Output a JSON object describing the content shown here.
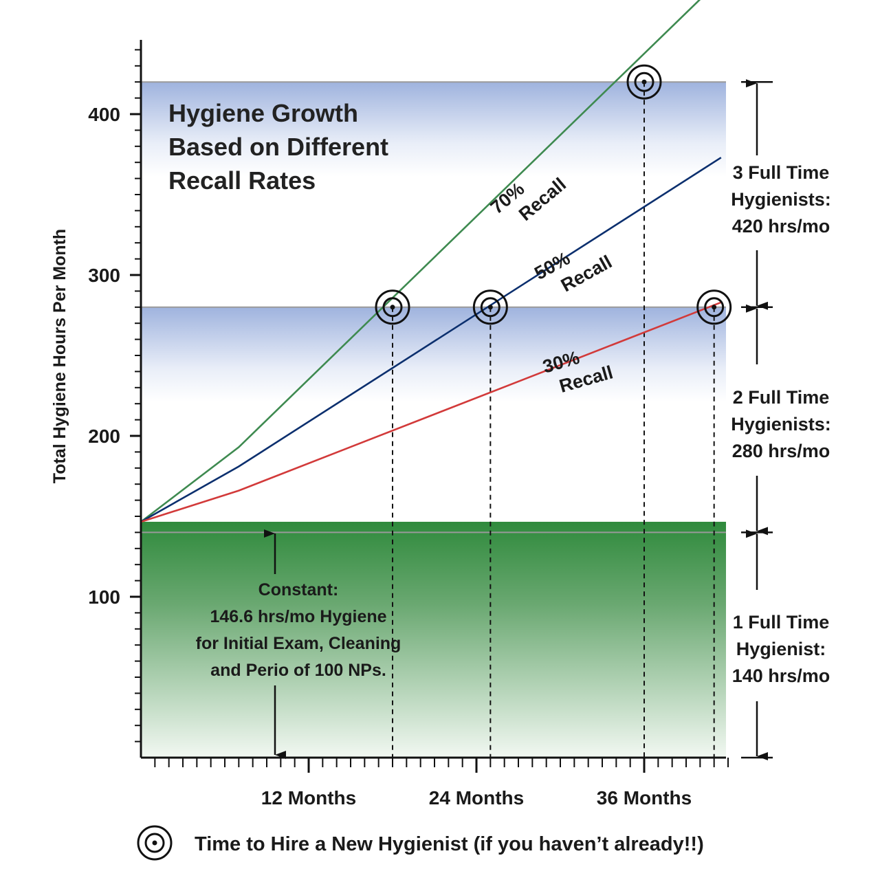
{
  "chart_data": {
    "type": "line",
    "title": [
      "Hygiene Growth",
      "Based on Different",
      "Recall Rates"
    ],
    "ylabel": "Total Hygiene Hours Per Month",
    "xlabel": "",
    "ylim": [
      0,
      440
    ],
    "xlim": [
      0,
      42
    ],
    "yticks": [
      100,
      200,
      300,
      400
    ],
    "xticks": [
      {
        "value": 12,
        "label": "12 Months"
      },
      {
        "value": 24,
        "label": "24 Months"
      },
      {
        "value": 36,
        "label": "36 Months"
      }
    ],
    "series": [
      {
        "name": "70% Recall",
        "label_lines": [
          "70%",
          "Recall"
        ],
        "color": "#3e8a50",
        "x": [
          0,
          7,
          41.5
        ],
        "y": [
          146.6,
          193,
          484
        ]
      },
      {
        "name": "50% Recall",
        "label_lines": [
          "50%",
          "Recall"
        ],
        "color": "#0b2f6e",
        "x": [
          0,
          7,
          41.5
        ],
        "y": [
          146.6,
          181,
          373
        ]
      },
      {
        "name": "30% Recall",
        "label_lines": [
          "30%",
          "Recall"
        ],
        "color": "#d23a3a",
        "x": [
          0,
          7,
          41.5
        ],
        "y": [
          146.6,
          166,
          283
        ]
      }
    ],
    "bands": [
      {
        "name": "3 Full Time Hygienists",
        "from": 280,
        "to": 420,
        "color": "#8fa6d8"
      },
      {
        "name": "2 Full Time Hygienists",
        "from": 140,
        "to": 280,
        "color": "#8fa6d8"
      },
      {
        "name": "Constant",
        "from": 0,
        "to": 146.6,
        "color": "#2f8a3c"
      }
    ],
    "reference_lines": [
      420,
      280,
      140
    ],
    "hire_points": [
      {
        "x": 18,
        "y": 280,
        "series": "70% Recall"
      },
      {
        "x": 25,
        "y": 280,
        "series": "50% Recall"
      },
      {
        "x": 36,
        "y": 420,
        "series": "70% Recall"
      },
      {
        "x": 41,
        "y": 280,
        "series": "30% Recall"
      }
    ],
    "annotations": {
      "constant": [
        "Constant:",
        "146.6 hrs/mo Hygiene",
        "for Initial Exam, Cleaning",
        "and Perio of 100 NPs."
      ],
      "levels": [
        {
          "lines": [
            "3 Full Time",
            "Hygienists:",
            "420 hrs/mo"
          ],
          "from": 280,
          "to": 420
        },
        {
          "lines": [
            "2 Full Time",
            "Hygienists:",
            "280 hrs/mo"
          ],
          "from": 140,
          "to": 280
        },
        {
          "lines": [
            "1 Full Time",
            "Hygienist:",
            "140 hrs/mo"
          ],
          "from": 0,
          "to": 140
        }
      ]
    },
    "legend": {
      "icon": "target-icon",
      "label": "Time to Hire a New Hygienist (if you haven’t already!!)",
      "position": "bottom"
    },
    "grid": false
  }
}
